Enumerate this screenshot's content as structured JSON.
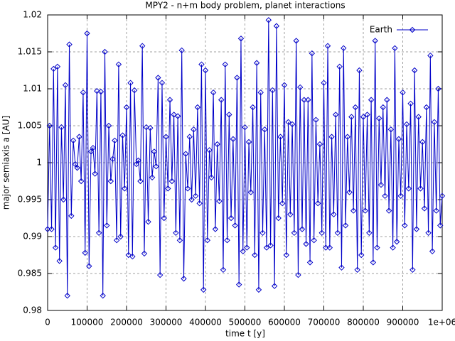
{
  "chart_data": {
    "type": "line",
    "title": "MPY2 - n+m body problem, planet interactions",
    "x_label": "time t [y]",
    "y_label": "major semiaxis a [AU]",
    "xlim": [
      0,
      1000000
    ],
    "ylim": [
      0.98,
      1.02
    ],
    "xticks": [
      0,
      100000,
      200000,
      300000,
      400000,
      500000,
      600000,
      700000,
      800000,
      900000,
      {
        "value": 1000000,
        "label": "1e+06"
      }
    ],
    "yticks": [
      0.98,
      0.985,
      0.99,
      0.995,
      1,
      1.005,
      1.01,
      1.015,
      1.02
    ],
    "grid": true,
    "legend": "top-right",
    "x": [
      0,
      5000,
      10000,
      15000,
      20000,
      25000,
      30000,
      35000,
      40000,
      45000,
      50000,
      55000,
      60000,
      65000,
      70000,
      75000,
      80000,
      85000,
      90000,
      95000,
      100000,
      105000,
      110000,
      115000,
      120000,
      125000,
      130000,
      135000,
      140000,
      145000,
      150000,
      155000,
      160000,
      165000,
      170000,
      175000,
      180000,
      185000,
      190000,
      195000,
      200000,
      205000,
      210000,
      215000,
      220000,
      225000,
      230000,
      235000,
      240000,
      245000,
      250000,
      255000,
      260000,
      265000,
      270000,
      275000,
      280000,
      285000,
      290000,
      295000,
      300000,
      305000,
      310000,
      315000,
      320000,
      325000,
      330000,
      335000,
      340000,
      345000,
      350000,
      355000,
      360000,
      365000,
      370000,
      375000,
      380000,
      385000,
      390000,
      395000,
      400000,
      405000,
      410000,
      415000,
      420000,
      425000,
      430000,
      435000,
      440000,
      445000,
      450000,
      455000,
      460000,
      465000,
      470000,
      475000,
      480000,
      485000,
      490000,
      495000,
      500000,
      505000,
      510000,
      515000,
      520000,
      525000,
      530000,
      535000,
      540000,
      545000,
      550000,
      555000,
      560000,
      565000,
      570000,
      575000,
      580000,
      585000,
      590000,
      595000,
      600000,
      605000,
      610000,
      615000,
      620000,
      625000,
      630000,
      635000,
      640000,
      645000,
      650000,
      655000,
      660000,
      665000,
      670000,
      675000,
      680000,
      685000,
      690000,
      695000,
      700000,
      705000,
      710000,
      715000,
      720000,
      725000,
      730000,
      735000,
      740000,
      745000,
      750000,
      755000,
      760000,
      765000,
      770000,
      775000,
      780000,
      785000,
      790000,
      795000,
      800000,
      805000,
      810000,
      815000,
      820000,
      825000,
      830000,
      835000,
      840000,
      845000,
      850000,
      855000,
      860000,
      865000,
      870000,
      875000,
      880000,
      885000,
      890000,
      895000,
      900000,
      905000,
      910000,
      915000,
      920000,
      925000,
      930000,
      935000,
      940000,
      945000,
      950000,
      955000,
      960000,
      965000,
      970000,
      975000,
      980000,
      985000,
      990000,
      995000,
      1000000
    ],
    "series": [
      {
        "name": "Earth",
        "color": "#0000c8",
        "values": [
          0.991,
          1.005,
          0.991,
          1.0127,
          0.9885,
          1.013,
          0.9867,
          1.0048,
          0.995,
          1.0105,
          0.982,
          1.016,
          0.9928,
          1.003,
          0.9998,
          0.9993,
          1.0035,
          0.9975,
          1.0095,
          0.9878,
          1.0175,
          0.986,
          1.0015,
          1.002,
          0.9985,
          1.0097,
          0.9905,
          1.0096,
          0.982,
          1.015,
          0.9915,
          1.005,
          0.9975,
          1.0005,
          1.003,
          0.9895,
          1.0133,
          0.99,
          1.0037,
          0.9965,
          1.0075,
          0.9875,
          1.0108,
          0.9873,
          1.0098,
          0.9998,
          1.0003,
          0.9975,
          1.0158,
          0.9877,
          1.0048,
          0.992,
          1.0047,
          0.998,
          1.0015,
          0.9995,
          1.0115,
          0.9848,
          1.0108,
          0.9925,
          1.0035,
          0.9965,
          1.0085,
          0.9975,
          1.0065,
          0.9905,
          1.0063,
          0.9895,
          1.0152,
          0.9843,
          1.0012,
          0.9965,
          1.0035,
          0.995,
          1.0045,
          0.9955,
          1.0075,
          0.9945,
          1.0133,
          0.9828,
          1.0125,
          0.9895,
          1.0017,
          0.998,
          1.0095,
          0.991,
          1.0025,
          0.9948,
          1.0085,
          0.9855,
          1.0133,
          0.9895,
          1.0065,
          0.9925,
          1.0032,
          0.9915,
          1.0115,
          0.9835,
          1.0168,
          0.988,
          1.0048,
          0.9885,
          1.0028,
          0.996,
          1.0075,
          0.9875,
          1.0135,
          0.9828,
          1.0095,
          0.9905,
          1.0045,
          0.9885,
          1.0193,
          0.9888,
          1.0098,
          0.9833,
          1.0185,
          0.9925,
          1.0035,
          0.9945,
          1.0105,
          0.9875,
          1.0055,
          0.993,
          1.0052,
          0.9905,
          1.0165,
          0.9848,
          1.0102,
          0.991,
          1.0085,
          0.989,
          1.0085,
          0.9865,
          1.0148,
          0.9895,
          1.0058,
          0.9945,
          1.0025,
          0.9905,
          1.0108,
          0.9885,
          1.0158,
          0.9885,
          1.0035,
          0.993,
          1.0065,
          0.9905,
          1.013,
          0.9858,
          1.0155,
          0.9915,
          1.0035,
          0.996,
          1.0062,
          0.9935,
          1.0075,
          0.9855,
          1.0125,
          0.9875,
          1.0062,
          0.9935,
          1.0065,
          0.9905,
          1.0085,
          0.9865,
          1.0165,
          0.9885,
          1.006,
          0.997,
          1.0075,
          0.9955,
          1.0085,
          0.9935,
          1.0045,
          0.9885,
          1.0155,
          0.9893,
          1.0032,
          0.9955,
          1.0095,
          0.9915,
          1.0052,
          0.9965,
          1.008,
          0.9855,
          1.0125,
          0.991,
          1.0062,
          0.9965,
          1.0028,
          0.9938,
          1.0075,
          0.9905,
          1.0145,
          0.988,
          1.0055,
          0.9935,
          1.01,
          0.9915,
          0.9955
        ]
      }
    ]
  }
}
